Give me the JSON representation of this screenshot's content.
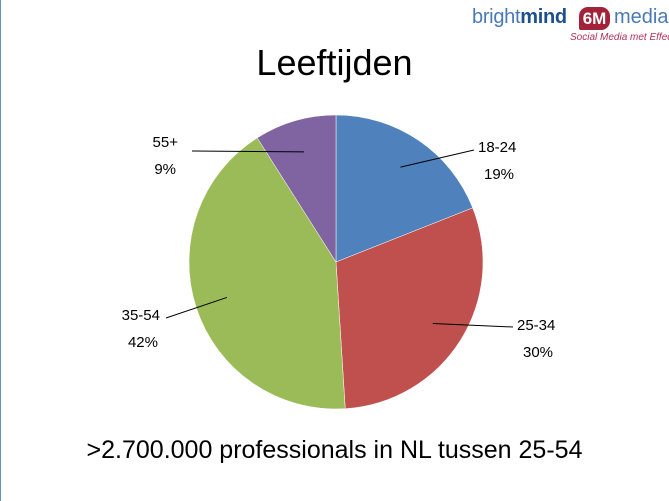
{
  "logo": {
    "word_a": "bright",
    "word_b": "mind",
    "badge": "6M",
    "word_c": "media",
    "tagline": "Social Media met Effect"
  },
  "chart_data": {
    "type": "pie",
    "title": "Leeftijden",
    "slices": [
      {
        "label": "18-24",
        "value": 19,
        "display": "19%",
        "color": "#4f81bd"
      },
      {
        "label": "25-34",
        "value": 30,
        "display": "30%",
        "color": "#c0504d"
      },
      {
        "label": "35-54",
        "value": 42,
        "display": "42%",
        "color": "#9bbb59"
      },
      {
        "label": "55+",
        "value": 9,
        "display": "9%",
        "color": "#8064a2"
      }
    ],
    "start": "12 o'clock",
    "direction": "clockwise",
    "legend": "none",
    "data_labels": "category and percentage, outside with leader lines"
  },
  "footer": ">2.700.000 professionals in NL tussen 25-54"
}
